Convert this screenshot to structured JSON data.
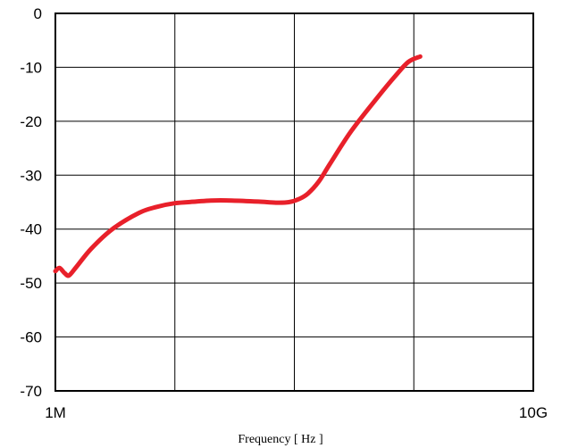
{
  "chart_data": {
    "type": "line",
    "title": "",
    "xlabel": "Frequency [ Hz ]",
    "ylabel": "",
    "x_scale": "log",
    "xlim": [
      1000000,
      10000000000
    ],
    "ylim": [
      -70,
      0
    ],
    "grid": true,
    "x_tick_labels": [
      {
        "value": 1000000,
        "label": "1M"
      },
      {
        "value": 10000000000,
        "label": "10G"
      }
    ],
    "y_ticks": [
      0,
      -10,
      -20,
      -30,
      -40,
      -50,
      -60,
      -70
    ],
    "y_tick_labels": [
      "0",
      "-10",
      "-20",
      "-30",
      "-40",
      "-50",
      "-60",
      "-70"
    ],
    "x_gridlines": [
      1000000,
      10000000,
      100000000,
      1000000000,
      10000000000
    ],
    "series": [
      {
        "color": "#e8202a",
        "points": [
          [
            1000000,
            -47.8
          ],
          [
            1080000,
            -47.2
          ],
          [
            1200000,
            -48.2
          ],
          [
            1300000,
            -48.6
          ],
          [
            1500000,
            -47.0
          ],
          [
            2000000,
            -43.6
          ],
          [
            3000000,
            -40.0
          ],
          [
            5000000,
            -37.0
          ],
          [
            7000000,
            -35.9
          ],
          [
            10000000,
            -35.2
          ],
          [
            15000000,
            -34.9
          ],
          [
            20000000,
            -34.7
          ],
          [
            30000000,
            -34.7
          ],
          [
            50000000,
            -34.9
          ],
          [
            70000000,
            -35.1
          ],
          [
            90000000,
            -35.0
          ],
          [
            110000000,
            -34.4
          ],
          [
            130000000,
            -33.4
          ],
          [
            160000000,
            -31.2
          ],
          [
            200000000,
            -27.8
          ],
          [
            300000000,
            -21.8
          ],
          [
            500000000,
            -15.5
          ],
          [
            700000000,
            -11.6
          ],
          [
            900000000,
            -9.0
          ],
          [
            1130000000,
            -8.0
          ]
        ]
      }
    ]
  }
}
